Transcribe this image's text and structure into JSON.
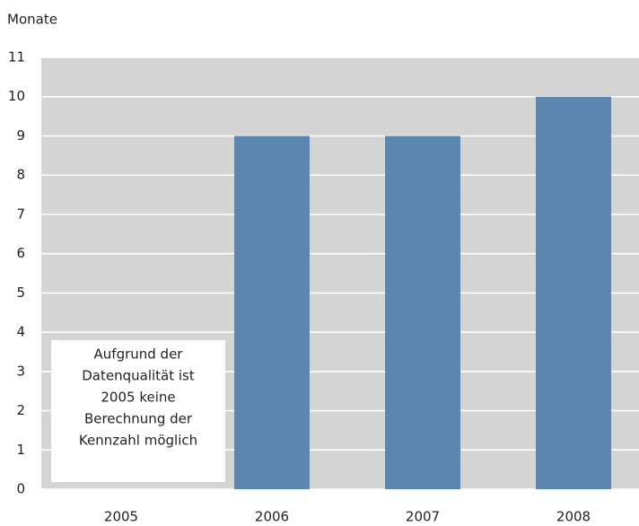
{
  "chart_data": {
    "type": "bar",
    "y_label": "Monate",
    "categories": [
      "2005",
      "2006",
      "2007",
      "2008"
    ],
    "values": [
      null,
      9,
      9,
      10
    ],
    "color": "#5b87b1",
    "ylim": [
      0,
      11
    ],
    "yticks": [
      0,
      1,
      2,
      3,
      4,
      5,
      6,
      7,
      8,
      9,
      10,
      11
    ],
    "grid": true,
    "annotation": [
      "Aufgrund der",
      "Datenqualität ist",
      "2005 keine",
      "Berechnung der",
      "Kennzahl möglich"
    ]
  }
}
